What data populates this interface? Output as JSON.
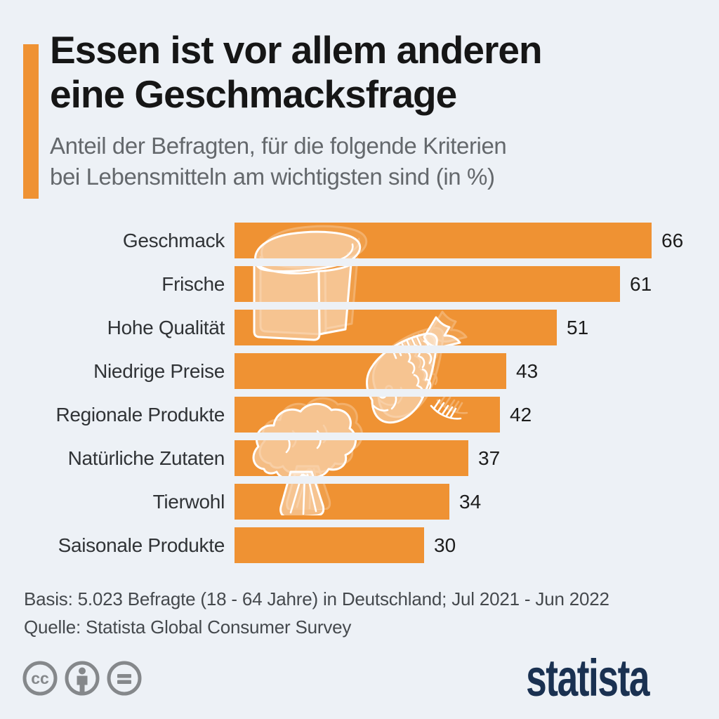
{
  "header": {
    "title_lines": [
      "Essen ist vor allem anderen",
      "eine Geschmacksfrage"
    ],
    "subtitle_lines": [
      "Anteil der Befragten, für die folgende Kriterien",
      "bei Lebensmitteln am wichtigsten sind (in %)"
    ]
  },
  "chart_data": {
    "type": "bar",
    "orientation": "horizontal",
    "title": "Essen ist vor allem anderen eine Geschmacksfrage",
    "subtitle": "Anteil der Befragten, für die folgende Kriterien bei Lebensmitteln am wichtigsten sind (in %)",
    "categories": [
      "Geschmack",
      "Frische",
      "Hohe Qualität",
      "Niedrige Preise",
      "Regionale Produkte",
      "Natürliche Zutaten",
      "Tierwohl",
      "Saisonale Produkte"
    ],
    "values": [
      66,
      61,
      51,
      43,
      42,
      37,
      34,
      30
    ],
    "unit": "%",
    "xlim": [
      0,
      66
    ],
    "grid": false,
    "value_label_position": "outside-end",
    "bar_color": "#EF9233",
    "illustrations": [
      "bread",
      "fish",
      "broccoli"
    ]
  },
  "footer": {
    "basis": "Basis: 5.023 Befragte (18 - 64 Jahre) in Deutschland; Jul 2021 - Jun 2022",
    "quelle": "Quelle: Statista Global Consumer Survey",
    "license_icons": [
      "cc-icon",
      "attribution-icon",
      "no-derivatives-icon"
    ],
    "cc_glyph": "cc",
    "brand": "statista"
  },
  "colors": {
    "background": "#EDF1F6",
    "accent": "#EF9233",
    "navy": "#1A3151",
    "title": "#161616",
    "subtitle": "#64686C",
    "label": "#303336",
    "footer_text": "#45494D",
    "license_gray": "#85888B"
  }
}
